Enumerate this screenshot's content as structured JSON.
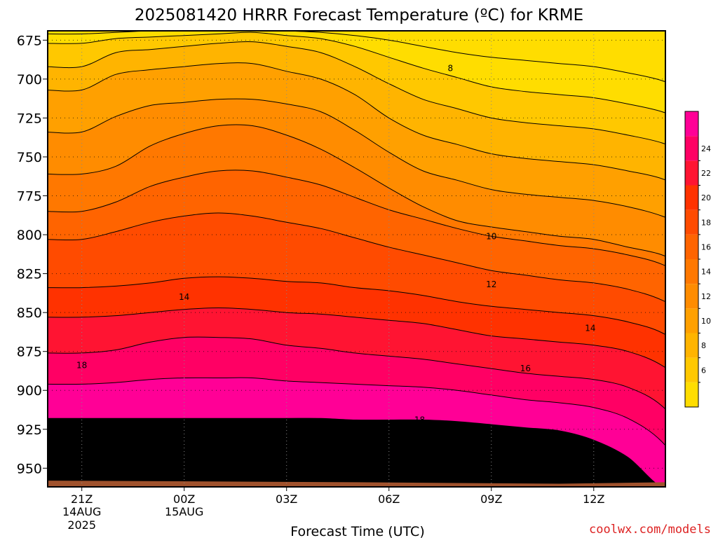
{
  "title": "2025081420 HRRR Forecast Temperature (ºC) for KRME",
  "watermark": "coolwx.com/models",
  "chart_data": {
    "type": "heatmap",
    "title": "2025081420 HRRR Forecast Temperature (ºC) for KRME",
    "xlabel": "Forecast Time (UTC)",
    "ylabel": "",
    "x_hours": [
      0,
      1,
      2,
      3,
      4,
      5,
      6,
      7,
      8,
      9,
      10,
      11,
      12,
      13,
      14,
      15,
      16,
      17,
      18,
      19
    ],
    "xlim": [
      -1,
      17.1
    ],
    "ylim": [
      962,
      669
    ],
    "y_ticks": [
      675,
      700,
      725,
      750,
      775,
      800,
      825,
      850,
      875,
      900,
      925,
      950
    ],
    "x_ticks": [
      {
        "hour": 0,
        "label": "21Z",
        "sub1": "14AUG",
        "sub2": "2025"
      },
      {
        "hour": 3,
        "label": "00Z",
        "sub1": "15AUG",
        "sub2": ""
      },
      {
        "hour": 6,
        "label": "03Z",
        "sub1": "",
        "sub2": ""
      },
      {
        "hour": 9,
        "label": "06Z",
        "sub1": "",
        "sub2": ""
      },
      {
        "hour": 12,
        "label": "09Z",
        "sub1": "",
        "sub2": ""
      },
      {
        "hour": 15,
        "label": "12Z",
        "sub1": "",
        "sub2": ""
      }
    ],
    "grid": true,
    "colorbar": {
      "position": "right",
      "levels": [
        5,
        7,
        9,
        11,
        13,
        15,
        17,
        19,
        21,
        23,
        25,
        27
      ],
      "colors": [
        "#ffdd00",
        "#ffc800",
        "#ffb400",
        "#ffa000",
        "#ff8c00",
        "#ff7800",
        "#ff6400",
        "#ff4b00",
        "#ff3200",
        "#ff1432",
        "#ff0064",
        "#ff0096"
      ],
      "tick_labels": [
        "6",
        "8",
        "10",
        "12",
        "14",
        "16",
        "18",
        "20",
        "22",
        "24"
      ]
    },
    "contour_labels": [
      {
        "text": "8",
        "hour": 10.8,
        "p": 693
      },
      {
        "text": "10",
        "hour": 12.0,
        "p": 801
      },
      {
        "text": "12",
        "hour": 12.0,
        "p": 832
      },
      {
        "text": "14",
        "hour": 3.0,
        "p": 840
      },
      {
        "text": "14",
        "hour": 14.9,
        "p": 860
      },
      {
        "text": "16",
        "hour": 13.0,
        "p": 886
      },
      {
        "text": "18",
        "hour": 0.0,
        "p": 884
      },
      {
        "text": "18",
        "hour": 9.9,
        "p": 919
      }
    ],
    "series": [
      {
        "t": 6,
        "p": [
          962,
          945,
          918,
          896,
          876,
          853,
          834,
          803,
          785,
          761,
          734,
          707,
          692,
          677,
          671
        ]
      },
      {
        "t": 7,
        "p": [
          962,
          945,
          918,
          895,
          874,
          852,
          833,
          798,
          779,
          756,
          724,
          697,
          683,
          674,
          670
        ]
      },
      {
        "t": 8,
        "p": [
          962,
          945,
          918,
          893,
          869,
          850,
          831,
          792,
          769,
          743,
          717,
          694,
          681,
          673,
          669
        ]
      },
      {
        "t": 9,
        "p": [
          962,
          945,
          918,
          892,
          866,
          848,
          828,
          788,
          763,
          735,
          715,
          692,
          679,
          672,
          669
        ]
      },
      {
        "t": 10,
        "p": [
          962,
          945,
          918,
          892,
          866,
          847,
          827,
          786,
          759,
          730,
          713,
          690,
          677,
          671,
          668
        ]
      },
      {
        "t": 11,
        "p": [
          962,
          945,
          918,
          892,
          867,
          848,
          828,
          788,
          759,
          730,
          713,
          690,
          676,
          670,
          668
        ]
      },
      {
        "t": 12,
        "p": [
          962,
          945,
          918,
          894,
          871,
          850,
          830,
          792,
          763,
          736,
          716,
          695,
          679,
          672,
          669
        ]
      },
      {
        "t": 13,
        "p": [
          962,
          945,
          918,
          895,
          873,
          851,
          831,
          796,
          768,
          745,
          721,
          700,
          683,
          674,
          670
        ]
      },
      {
        "t": 14,
        "p": [
          962,
          945,
          919,
          896,
          876,
          853,
          834,
          802,
          776,
          757,
          733,
          710,
          692,
          679,
          672
        ]
      },
      {
        "t": 15,
        "p": [
          962,
          945,
          919,
          897,
          878,
          855,
          836,
          808,
          784,
          770,
          747,
          725,
          703,
          686,
          675
        ]
      },
      {
        "t": 16,
        "p": [
          962,
          945,
          919,
          898,
          880,
          857,
          839,
          813,
          790,
          782,
          759,
          736,
          713,
          693,
          679
        ]
      },
      {
        "t": 17,
        "p": [
          962,
          945,
          920,
          900,
          883,
          861,
          843,
          818,
          796,
          791,
          765,
          742,
          719,
          699,
          683
        ]
      },
      {
        "t": 18,
        "p": [
          962,
          946,
          922,
          903,
          886,
          865,
          846,
          823,
          801,
          795,
          771,
          748,
          725,
          705,
          686
        ]
      },
      {
        "t": 19,
        "p": [
          962,
          947,
          924,
          906,
          889,
          867,
          848,
          826,
          804,
          798,
          774,
          751,
          728,
          708,
          688
        ]
      },
      {
        "t": 20,
        "p": [
          962,
          948,
          926,
          908,
          891,
          869,
          850,
          829,
          807,
          801,
          776,
          753,
          730,
          710,
          690
        ]
      },
      {
        "t": 21,
        "p": [
          962,
          955,
          932,
          911,
          893,
          871,
          852,
          831,
          809,
          803,
          778,
          755,
          732,
          712,
          692
        ]
      },
      {
        "t": 22,
        "p": [
          962,
          962,
          943,
          918,
          898,
          875,
          856,
          835,
          813,
          808,
          782,
          759,
          736,
          716,
          696
        ]
      },
      {
        "t": 23,
        "p": [
          962,
          962,
          962,
          933,
          910,
          884,
          863,
          842,
          819,
          813,
          788,
          764,
          741,
          721,
          701
        ]
      },
      {
        "t": 24,
        "p": [
          962,
          962,
          962,
          962,
          936,
          902,
          878,
          855,
          831,
          824,
          798,
          774,
          750,
          730,
          710
        ]
      },
      {
        "t": 25,
        "p": [
          962,
          962,
          962,
          962,
          962,
          935,
          903,
          876,
          850,
          842,
          815,
          790,
          765,
          744,
          723
        ]
      }
    ]
  }
}
